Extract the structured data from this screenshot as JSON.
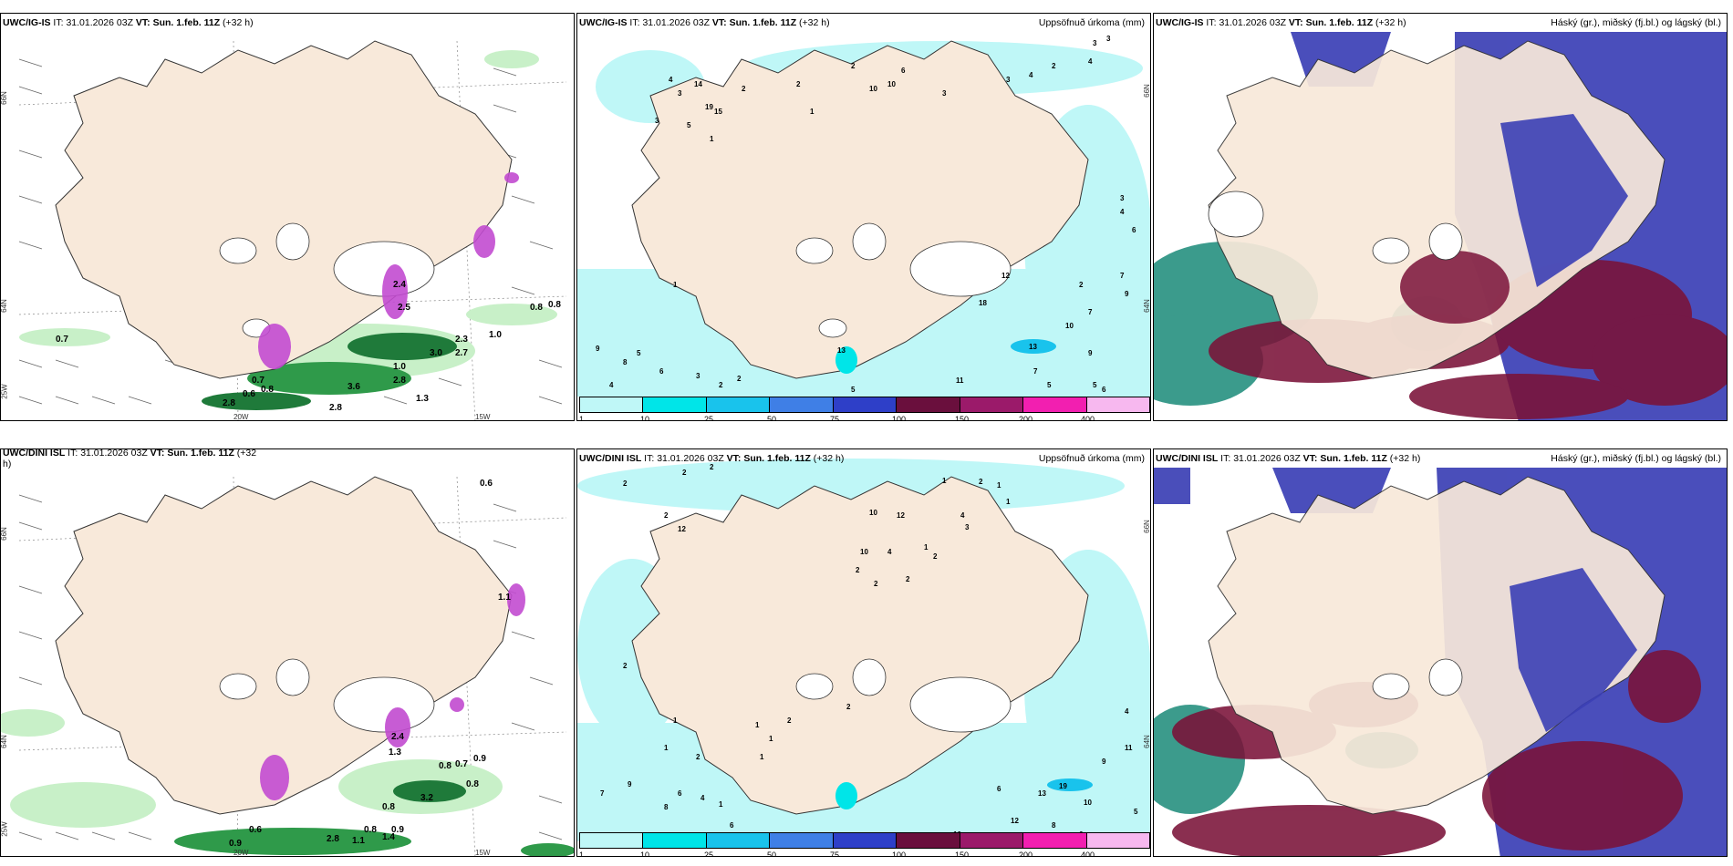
{
  "panels": {
    "top_left": {
      "model": "UWC/IG-IS",
      "it_label": "IT:",
      "it": "31.01.2026 03Z",
      "vt_label": "VT:",
      "vt": "Sun. 1.feb. 11Z",
      "offset": "(+32 h)"
    },
    "top_mid": {
      "model": "UWC/IG-IS",
      "it_label": "IT:",
      "it": "31.01.2026 03Z",
      "vt_label": "VT:",
      "vt": "Sun. 1.feb. 11Z",
      "offset": "(+32 h)",
      "right_title": "Uppsöfnuð úrkoma (mm)"
    },
    "top_right": {
      "model": "UWC/IG-IS",
      "it_label": "IT:",
      "it": "31.01.2026 03Z",
      "vt_label": "VT:",
      "vt": "Sun. 1.feb. 11Z",
      "offset": "(+32 h)",
      "right_title": "Háský (gr.), miðský (fj.bl.) og lágský (bl.)"
    },
    "bottom_left": {
      "model": "UWC/DINI ISL",
      "it_label": "IT:",
      "it": "31.01.2026 03Z",
      "vt_label": "VT:",
      "vt": "Sun. 1.feb. 11Z",
      "offset": "(+32",
      "offset2": "h)"
    },
    "bottom_mid": {
      "model": "UWC/DINI ISL",
      "it_label": "IT:",
      "it": "31.01.2026 03Z",
      "vt_label": "VT:",
      "vt": "Sun. 1.feb. 11Z",
      "offset": "(+32 h)",
      "right_title": "Uppsöfnuð úrkoma (mm)"
    },
    "bottom_right": {
      "model": "UWC/DINI ISL",
      "it_label": "IT:",
      "it": "31.01.2026 03Z",
      "vt_label": "VT:",
      "vt": "Sun. 1.feb. 11Z",
      "offset": "(+32 h)",
      "right_title": "Háský (gr.), miðský (fj.bl.) og lágský (bl.)"
    }
  },
  "axes": {
    "lat_66": "66N",
    "lat_64": "64N",
    "lat_25": "25W",
    "lon_20": "20W",
    "lon_15": "15W"
  },
  "colorbar": {
    "ticks": [
      "1",
      "10",
      "25",
      "50",
      "75",
      "100",
      "150",
      "200",
      "400"
    ],
    "colors": [
      "#bff7f7",
      "#00e5e8",
      "#19c3ec",
      "#3f7fe6",
      "#2e3fc8",
      "#6a0f3d",
      "#9b1a6a",
      "#f21fb0",
      "#f7b8ef"
    ]
  },
  "colors": {
    "land": "#f8e9da",
    "coast": "#333333",
    "green_light": "#c8f0c8",
    "green_dark": "#1f7a3a",
    "magenta": "#c24bd0",
    "cyan": "#9ff2f0",
    "cloud_low": "#3b3fb5",
    "cloud_high": "#1a8a78",
    "cloud_mid": "#7a1238"
  },
  "labels": {
    "top_left": [
      "0.7",
      "0.8",
      "0.8",
      "1.0",
      "2.4",
      "3.0",
      "2.7",
      "2.3",
      "1.0",
      "0.7",
      "0.8",
      "3.6",
      "2.8",
      "1.3",
      "2.8",
      "2.8",
      "2.5",
      "0.6"
    ],
    "top_mid": [
      "3",
      "3",
      "4",
      "2",
      "4",
      "3",
      "2",
      "2",
      "10",
      "10",
      "6",
      "2",
      "3",
      "1",
      "4",
      "3",
      "5",
      "19",
      "14",
      "15",
      "3",
      "1",
      "1",
      "9",
      "5",
      "8",
      "6",
      "3",
      "2",
      "2",
      "4",
      "13",
      "7",
      "5",
      "9",
      "10",
      "13",
      "11",
      "5",
      "5",
      "6",
      "3",
      "4",
      "6",
      "2",
      "7",
      "9",
      "7",
      "12",
      "18",
      "10"
    ],
    "bottom_left": [
      "0.6",
      "1.1",
      "2.4",
      "0.8",
      "0.7",
      "0.9",
      "0.8",
      "3.2",
      "0.8",
      "0.6",
      "0.9",
      "2.8",
      "1.1",
      "1.4",
      "0.8",
      "0.9",
      "1.3"
    ],
    "bottom_mid": [
      "2",
      "2",
      "2",
      "10",
      "1",
      "1",
      "1",
      "4",
      "2",
      "3",
      "12",
      "10",
      "4",
      "2",
      "2",
      "2",
      "2",
      "1",
      "12",
      "2",
      "2",
      "1",
      "1",
      "1",
      "2",
      "1",
      "2",
      "2",
      "1",
      "4",
      "11",
      "9",
      "19",
      "13",
      "10",
      "5",
      "6",
      "12",
      "8",
      "6",
      "10",
      "9",
      "7",
      "6",
      "8",
      "4",
      "6",
      "1"
    ]
  }
}
